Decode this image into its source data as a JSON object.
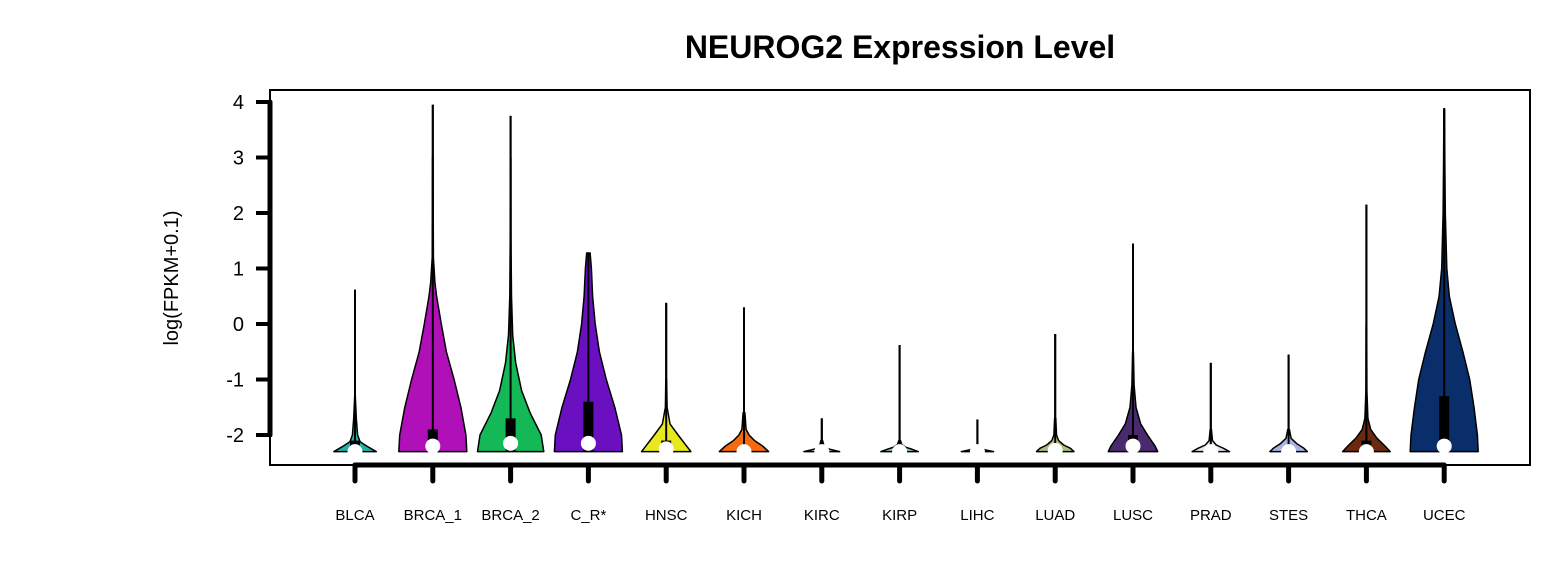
{
  "chart_data": {
    "type": "violin",
    "title": "NEUROG2 Expression Level",
    "xlabel": "",
    "ylabel": "log(FPKM+0.1)",
    "ylim": [
      -2.5,
      4.2
    ],
    "yticks": [
      -2,
      -1,
      0,
      1,
      2,
      3,
      4
    ],
    "grid": false,
    "legend": "none",
    "categories": [
      "BLCA",
      "BRCA_1",
      "BRCA_2",
      "C_R*",
      "HNSC",
      "KICH",
      "KIRC",
      "KIRP",
      "LIHC",
      "LUAD",
      "LUSC",
      "PRAD",
      "STES",
      "THCA",
      "UCEC"
    ],
    "series": [
      {
        "category": "BLCA",
        "color": "#20b2aa",
        "min": -2.3,
        "max": 0.62,
        "q1": -2.3,
        "median": -2.3,
        "q3": -2.1,
        "density": [
          [
            -2.3,
            0.5
          ],
          [
            -2.22,
            0.32
          ],
          [
            -2.12,
            0.12
          ],
          [
            -2.0,
            0.06
          ],
          [
            -1.7,
            0.03
          ],
          [
            -1.3,
            0.008
          ]
        ]
      },
      {
        "category": "BRCA_1",
        "color": "#b010b8",
        "min": -2.3,
        "max": 3.95,
        "q1": -2.3,
        "median": -2.2,
        "q3": -1.9,
        "density": [
          [
            -2.3,
            0.8
          ],
          [
            -2.0,
            0.78
          ],
          [
            -1.5,
            0.66
          ],
          [
            -1.0,
            0.5
          ],
          [
            -0.5,
            0.32
          ],
          [
            0.0,
            0.2
          ],
          [
            0.5,
            0.09
          ],
          [
            0.75,
            0.05
          ],
          [
            1.2,
            0.015
          ],
          [
            2.0,
            0.01
          ],
          [
            3.0,
            0.007
          ]
        ]
      },
      {
        "category": "BRCA_2",
        "color": "#14b856",
        "color_note": "",
        "min": -2.3,
        "max": 3.75,
        "q1": -2.3,
        "median": -2.15,
        "q3": -1.7,
        "density": [
          [
            -2.3,
            0.78
          ],
          [
            -2.0,
            0.72
          ],
          [
            -1.6,
            0.46
          ],
          [
            -1.2,
            0.26
          ],
          [
            -0.7,
            0.12
          ],
          [
            -0.2,
            0.05
          ],
          [
            0.5,
            0.02
          ],
          [
            1.5,
            0.01
          ],
          [
            3.0,
            0.006
          ]
        ]
      },
      {
        "category": "C_R*",
        "color": "#6a10c0",
        "min": -2.3,
        "max": 1.28,
        "q1": -2.3,
        "median": -2.15,
        "q3": -1.4,
        "density": [
          [
            -2.3,
            0.8
          ],
          [
            -2.0,
            0.78
          ],
          [
            -1.5,
            0.62
          ],
          [
            -1.0,
            0.42
          ],
          [
            -0.5,
            0.26
          ],
          [
            0.0,
            0.16
          ],
          [
            0.5,
            0.1
          ],
          [
            1.0,
            0.07
          ],
          [
            1.28,
            0.04
          ]
        ]
      },
      {
        "category": "HNSC",
        "color": "#e8e820",
        "min": -2.3,
        "max": 0.38,
        "q1": -2.3,
        "median": -2.25,
        "q3": -2.1,
        "density": [
          [
            -2.3,
            0.58
          ],
          [
            -2.2,
            0.48
          ],
          [
            -2.0,
            0.28
          ],
          [
            -1.8,
            0.09
          ],
          [
            -1.5,
            0.02
          ],
          [
            -1.0,
            0.01
          ]
        ]
      },
      {
        "category": "KICH",
        "color": "#f36a10",
        "min": -2.3,
        "max": 0.3,
        "q1": -2.3,
        "median": -2.3,
        "q3": -2.2,
        "density": [
          [
            -2.3,
            0.58
          ],
          [
            -2.2,
            0.44
          ],
          [
            -2.1,
            0.25
          ],
          [
            -2.0,
            0.12
          ],
          [
            -1.9,
            0.05
          ],
          [
            -1.6,
            0.02
          ]
        ]
      },
      {
        "category": "KIRC",
        "color": "#c8c8c8",
        "min": -2.3,
        "max": -1.7,
        "q1": -2.3,
        "median": -2.3,
        "q3": -2.3,
        "density": [
          [
            -2.3,
            0.42
          ],
          [
            -2.26,
            0.2
          ],
          [
            -2.22,
            0.06
          ],
          [
            -2.1,
            0.02
          ]
        ]
      },
      {
        "category": "KIRP",
        "color": "#90c8a0",
        "min": -2.3,
        "max": -0.38,
        "q1": -2.3,
        "median": -2.3,
        "q3": -2.3,
        "density": [
          [
            -2.3,
            0.44
          ],
          [
            -2.26,
            0.3
          ],
          [
            -2.22,
            0.14
          ],
          [
            -2.17,
            0.05
          ],
          [
            -2.1,
            0.02
          ]
        ]
      },
      {
        "category": "LIHC",
        "color": "#d0d0d0",
        "min": -2.3,
        "max": -1.72,
        "q1": -2.3,
        "median": -2.3,
        "q3": -2.3,
        "density": [
          [
            -2.3,
            0.38
          ],
          [
            -2.27,
            0.2
          ],
          [
            -2.24,
            0.05
          ]
        ]
      },
      {
        "category": "LUAD",
        "color": "#a8c080",
        "min": -2.3,
        "max": -0.18,
        "q1": -2.3,
        "median": -2.28,
        "q3": -2.2,
        "density": [
          [
            -2.3,
            0.44
          ],
          [
            -2.24,
            0.36
          ],
          [
            -2.18,
            0.2
          ],
          [
            -2.1,
            0.08
          ],
          [
            -2.0,
            0.03
          ],
          [
            -1.7,
            0.015
          ]
        ]
      },
      {
        "category": "LUSC",
        "color": "#4a2a6e",
        "min": -2.3,
        "max": 1.45,
        "q1": -2.3,
        "median": -2.2,
        "q3": -2.0,
        "density": [
          [
            -2.3,
            0.58
          ],
          [
            -2.2,
            0.52
          ],
          [
            -2.0,
            0.34
          ],
          [
            -1.8,
            0.18
          ],
          [
            -1.5,
            0.07
          ],
          [
            -1.1,
            0.025
          ],
          [
            -0.5,
            0.01
          ]
        ]
      },
      {
        "category": "PRAD",
        "color": "#e0e0f0",
        "min": -2.3,
        "max": -0.7,
        "q1": -2.3,
        "median": -2.3,
        "q3": -2.3,
        "density": [
          [
            -2.3,
            0.44
          ],
          [
            -2.24,
            0.3
          ],
          [
            -2.18,
            0.13
          ],
          [
            -2.1,
            0.04
          ],
          [
            -1.9,
            0.015
          ]
        ]
      },
      {
        "category": "STES",
        "color": "#a8b4e0",
        "min": -2.3,
        "max": -0.55,
        "q1": -2.3,
        "median": -2.3,
        "q3": -2.25,
        "density": [
          [
            -2.3,
            0.44
          ],
          [
            -2.24,
            0.36
          ],
          [
            -2.16,
            0.2
          ],
          [
            -2.06,
            0.06
          ],
          [
            -1.9,
            0.02
          ]
        ]
      },
      {
        "category": "THCA",
        "color": "#6a2a10",
        "min": -2.3,
        "max": 2.15,
        "q1": -2.3,
        "median": -2.3,
        "q3": -2.1,
        "density": [
          [
            -2.3,
            0.56
          ],
          [
            -2.2,
            0.44
          ],
          [
            -2.05,
            0.24
          ],
          [
            -1.9,
            0.1
          ],
          [
            -1.7,
            0.035
          ],
          [
            -1.2,
            0.012
          ],
          [
            0.0,
            0.008
          ]
        ]
      },
      {
        "category": "UCEC",
        "color": "#0a2e6a",
        "min": -2.3,
        "max": 3.88,
        "q1": -2.3,
        "median": -2.2,
        "q3": -1.3,
        "density": [
          [
            -2.3,
            0.8
          ],
          [
            -2.0,
            0.78
          ],
          [
            -1.5,
            0.7
          ],
          [
            -1.0,
            0.6
          ],
          [
            -0.5,
            0.44
          ],
          [
            0.0,
            0.26
          ],
          [
            0.5,
            0.12
          ],
          [
            1.0,
            0.06
          ],
          [
            2.0,
            0.025
          ],
          [
            3.0,
            0.015
          ],
          [
            3.88,
            0.006
          ]
        ]
      }
    ]
  }
}
